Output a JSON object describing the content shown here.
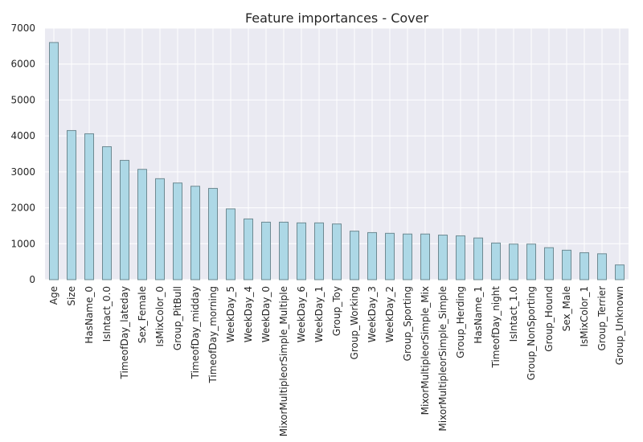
{
  "chart_data": {
    "type": "bar",
    "title": "Feature importances - Cover",
    "xlabel": "",
    "ylabel": "",
    "ylim": [
      0,
      7000
    ],
    "yticks": [
      0,
      1000,
      2000,
      3000,
      4000,
      5000,
      6000,
      7000
    ],
    "grid": true,
    "categories": [
      "Age",
      "Size",
      "HasName_0",
      "IsIntact_0.0",
      "TimeofDay_lateday",
      "Sex_Female",
      "IsMixColor_0",
      "Group_PitBull",
      "TimeofDay_midday",
      "TimeofDay_morning",
      "WeekDay_5",
      "WeekDay_4",
      "WeekDay_0",
      "MixorMultipleorSimple_Multiple",
      "WeekDay_6",
      "WeekDay_1",
      "Group_Toy",
      "Group_Working",
      "WeekDay_3",
      "WeekDay_2",
      "Group_Sporting",
      "MixorMultipleorSimple_Mix",
      "MixorMultipleorSimple_Simple",
      "Group_Herding",
      "HasName_1",
      "TimeofDay_night",
      "IsIntact_1.0",
      "Group_NonSporting",
      "Group_Hound",
      "Sex_Male",
      "IsMixColor_1",
      "Group_Terrier",
      "Group_Unknown"
    ],
    "values": [
      6600,
      4150,
      4060,
      3700,
      3320,
      3070,
      2810,
      2690,
      2600,
      2540,
      1970,
      1690,
      1600,
      1600,
      1580,
      1580,
      1550,
      1350,
      1310,
      1290,
      1270,
      1270,
      1240,
      1220,
      1160,
      1020,
      990,
      990,
      890,
      820,
      750,
      720,
      410
    ],
    "colors": {
      "bar_fill": "#add8e6",
      "bar_edge": "#6e8a92",
      "plot_bg": "#eaeaf2",
      "grid": "#ffffff"
    }
  }
}
